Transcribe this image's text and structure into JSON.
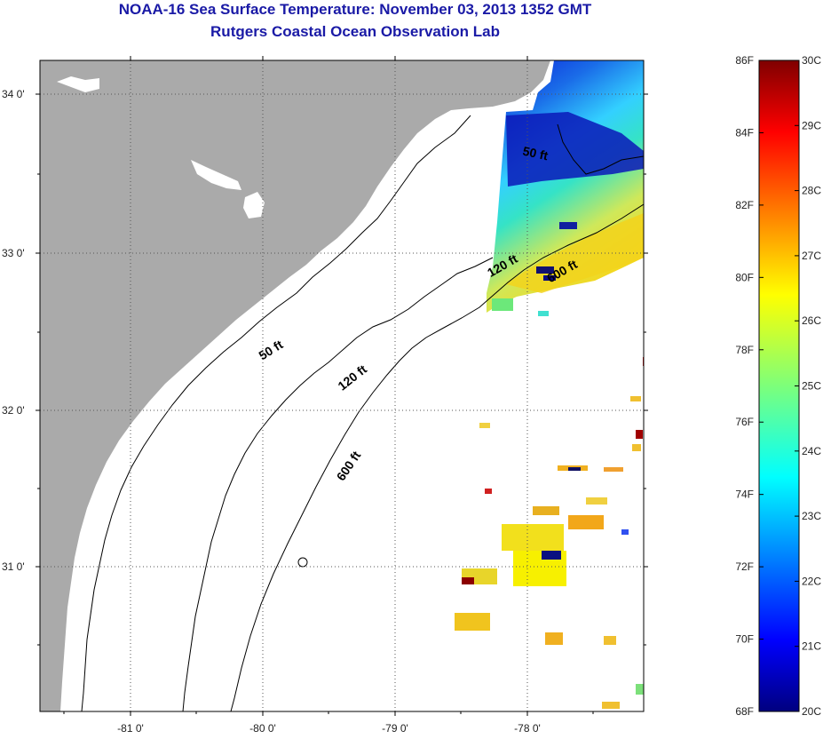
{
  "header": {
    "title": "NOAA-16 Sea Surface Temperature:  November 03, 2013 1352 GMT",
    "subtitle": "Rutgers Coastal Ocean Observation Lab"
  },
  "map": {
    "lon_range": [
      -81.67,
      -77.2
    ],
    "lat_range": [
      30.18,
      34.2
    ],
    "lat_ticks": [
      {
        "value": 34,
        "label": "34 0'"
      },
      {
        "value": 33,
        "label": "33 0'"
      },
      {
        "value": 32,
        "label": "32 0'"
      },
      {
        "value": 31,
        "label": "31 0'"
      }
    ],
    "lon_ticks": [
      {
        "value": -81,
        "label": "-81 0'"
      },
      {
        "value": -80,
        "label": "-80 0'"
      },
      {
        "value": -79,
        "label": "-79 0'"
      },
      {
        "value": -78,
        "label": "-78 0'"
      }
    ],
    "contour_labels": [
      "50 ft",
      "120 ft",
      "600 ft",
      "50 ft",
      "120 ft",
      "600 ft"
    ],
    "colors": {
      "land": "#aaaaaa",
      "ocean": "#ffffff",
      "grid": "#444444"
    }
  },
  "colorbar": {
    "fahrenheit_labels": [
      "86F",
      "84F",
      "82F",
      "80F",
      "78F",
      "76F",
      "74F",
      "72F",
      "70F",
      "68F"
    ],
    "celsius_labels": [
      "30C",
      "29C",
      "28C",
      "27C",
      "26C",
      "25C",
      "24C",
      "23C",
      "22C",
      "21C",
      "20C"
    ],
    "range_c": [
      20,
      30
    ]
  }
}
